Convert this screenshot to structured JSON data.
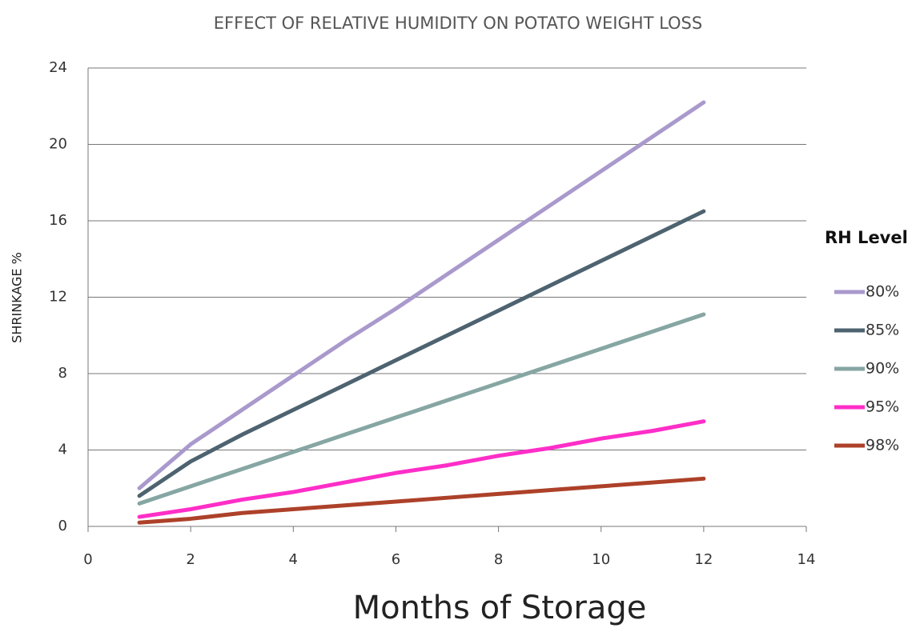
{
  "chart_data": {
    "type": "line",
    "title": "EFFECT OF RELATIVE HUMIDITY ON POTATO WEIGHT LOSS",
    "x_label": "Months of Storage",
    "y_label": "SHRINKAGE %",
    "legend_title": "RH Level",
    "x": [
      1,
      2,
      3,
      4,
      5,
      6,
      7,
      8,
      9,
      10,
      11,
      12
    ],
    "series": [
      {
        "name": "80%",
        "color": "#a999cc",
        "values": [
          2.0,
          4.3,
          6.1,
          7.9,
          9.7,
          11.4,
          13.2,
          15.0,
          16.8,
          18.6,
          20.4,
          22.2
        ]
      },
      {
        "name": "85%",
        "color": "#4e6370",
        "values": [
          1.6,
          3.4,
          4.8,
          6.1,
          7.4,
          8.7,
          10.0,
          11.3,
          12.6,
          13.9,
          15.2,
          16.5
        ]
      },
      {
        "name": "90%",
        "color": "#86a6a3",
        "values": [
          1.2,
          2.1,
          3.0,
          3.9,
          4.8,
          5.7,
          6.6,
          7.5,
          8.4,
          9.3,
          10.2,
          11.1
        ]
      },
      {
        "name": "95%",
        "color": "#ff2ec8",
        "values": [
          0.5,
          0.9,
          1.4,
          1.8,
          2.3,
          2.8,
          3.2,
          3.7,
          4.1,
          4.6,
          5.0,
          5.5
        ]
      },
      {
        "name": "98%",
        "color": "#ad4129",
        "values": [
          0.2,
          0.4,
          0.7,
          0.9,
          1.1,
          1.3,
          1.5,
          1.7,
          1.9,
          2.1,
          2.3,
          2.5
        ]
      }
    ],
    "xlim": [
      0,
      14
    ],
    "xticks": [
      0,
      2,
      4,
      6,
      8,
      10,
      12,
      14
    ],
    "ylim": [
      0,
      24
    ],
    "yticks": [
      0,
      4,
      8,
      12,
      16,
      20,
      24
    ],
    "grid": true
  }
}
